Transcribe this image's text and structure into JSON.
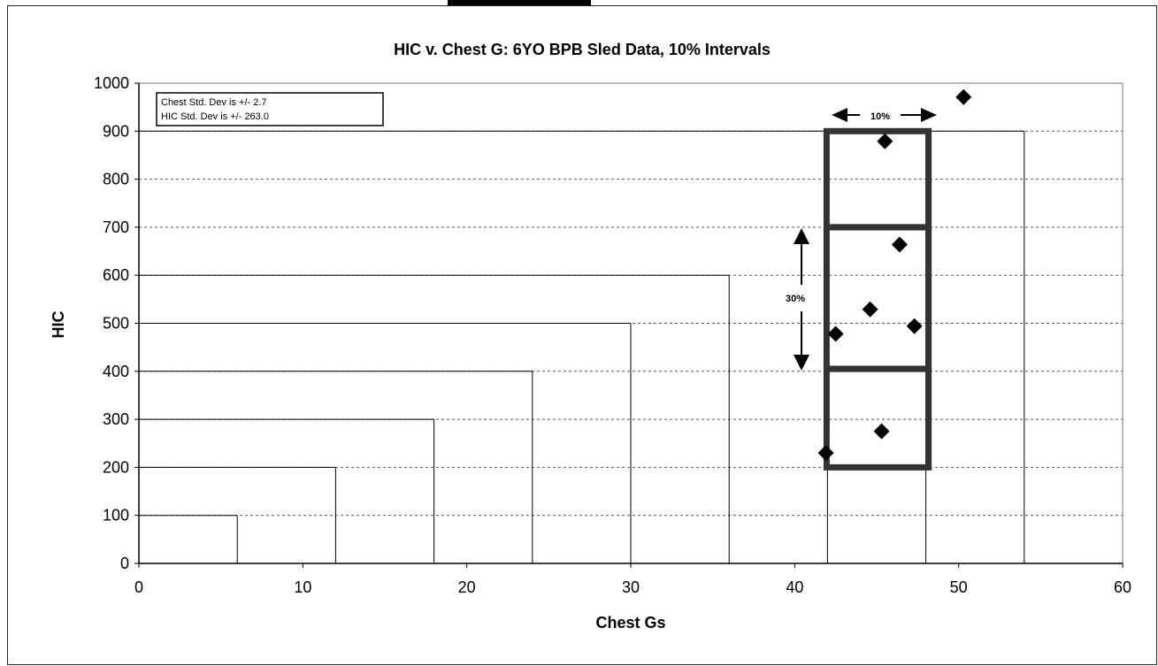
{
  "chart_data": {
    "type": "scatter",
    "title": "HIC v. Chest G: 6YO BPB Sled Data, 10% Intervals",
    "xlabel": "Chest Gs",
    "ylabel": "HIC",
    "xlim": [
      0,
      60
    ],
    "ylim": [
      0,
      1000
    ],
    "x_ticks": [
      0,
      10,
      20,
      30,
      40,
      50,
      60
    ],
    "y_ticks": [
      0,
      100,
      200,
      300,
      400,
      500,
      600,
      700,
      800,
      900,
      1000
    ],
    "grid": "horizontal dashed",
    "points": [
      {
        "x": 41.9,
        "y": 230
      },
      {
        "x": 42.5,
        "y": 478
      },
      {
        "x": 44.6,
        "y": 529
      },
      {
        "x": 45.3,
        "y": 275
      },
      {
        "x": 45.5,
        "y": 879
      },
      {
        "x": 46.4,
        "y": 664
      },
      {
        "x": 47.3,
        "y": 494
      },
      {
        "x": 50.3,
        "y": 971
      }
    ],
    "interval_steps": [
      {
        "x0": 0,
        "x1": 6,
        "y": 100
      },
      {
        "x0": 0,
        "x1": 12,
        "y": 200
      },
      {
        "x0": 0,
        "x1": 18,
        "y": 300
      },
      {
        "x0": 0,
        "x1": 24,
        "y": 400
      },
      {
        "x0": 0,
        "x1": 30,
        "y": 500
      },
      {
        "x0": 0,
        "x1": 36,
        "y": 600
      },
      {
        "x0": 0,
        "x1": 54,
        "y": 900
      }
    ],
    "interval_verticals": [
      6,
      12,
      18,
      24,
      30,
      36,
      42,
      48,
      54
    ],
    "highlight_boxes": [
      {
        "x0": 42,
        "x1": 48,
        "y0": 200,
        "y1": 405
      },
      {
        "x0": 42,
        "x1": 48,
        "y0": 405,
        "y1": 700
      },
      {
        "x0": 42,
        "x1": 48,
        "y0": 700,
        "y1": 900
      }
    ],
    "annotations": {
      "stddev_lines": [
        "Chest Std. Dev is +/- 2.7",
        "HIC Std. Dev is +/- 263.0"
      ],
      "horizontal_arrow_label": "10%",
      "vertical_arrow_label": "30%"
    },
    "colors": {
      "marker": "#000000",
      "box": "#333333",
      "grid": "#555555"
    }
  }
}
